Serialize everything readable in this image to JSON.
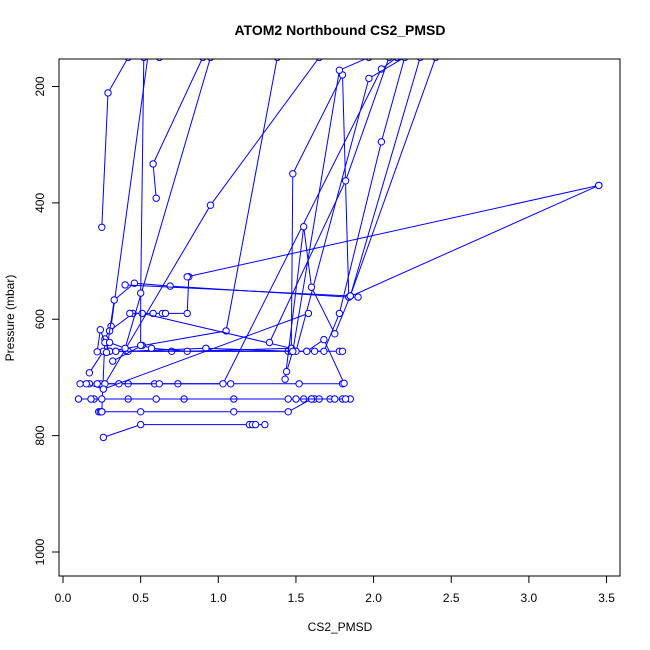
{
  "chart_data": {
    "type": "line",
    "title": "ATOM2 Northbound CS2_PMSD",
    "xlabel": "CS2_PMSD",
    "ylabel": "Pressure (mbar)",
    "xlim": [
      0,
      3.5
    ],
    "ylim": [
      1000,
      200
    ],
    "y_axis_reversed": true,
    "xticks": [
      0.0,
      0.5,
      1.0,
      1.5,
      2.0,
      2.5,
      3.0,
      3.5
    ],
    "xtick_labels": [
      "0.0",
      "0.5",
      "1.0",
      "1.5",
      "2.0",
      "2.5",
      "3.0",
      "3.5"
    ],
    "yticks": [
      200,
      400,
      600,
      800,
      1000
    ],
    "ytick_labels": [
      "200",
      "400",
      "600",
      "800",
      "1000"
    ],
    "grid": false,
    "legend": "none",
    "line_color": "#0000ff",
    "marker": "open-circle",
    "series": [
      {
        "x": [
          0.26,
          0.5,
          1.2,
          1.22,
          1.24,
          1.3
        ],
        "y": [
          803,
          781,
          781,
          781,
          781,
          781
        ]
      },
      {
        "x": [
          0.23,
          0.24,
          0.25,
          0.27,
          0.31,
          0.55
        ],
        "y": [
          759,
          759,
          759,
          634,
          612,
          142
        ]
      },
      {
        "x": [
          0.25,
          0.5,
          1.1,
          1.45,
          1.6,
          1.62,
          1.65
        ],
        "y": [
          759,
          759,
          759,
          759,
          737,
          737,
          737
        ]
      },
      {
        "x": [
          0.1,
          0.2,
          0.42,
          0.78,
          1.1,
          1.55,
          1.6,
          1.72,
          1.8,
          1.85
        ],
        "y": [
          737,
          737,
          737,
          737,
          737,
          737,
          737,
          737,
          737,
          737
        ]
      },
      {
        "x": [
          0.18,
          0.25,
          0.6,
          1.45,
          1.5,
          1.75,
          1.82
        ],
        "y": [
          737,
          737,
          737,
          737,
          737,
          737,
          737
        ]
      },
      {
        "x": [
          0.11,
          0.17,
          0.24,
          0.42,
          0.59,
          0.74,
          1.08,
          1.52,
          1.8
        ],
        "y": [
          711,
          711,
          711,
          711,
          711,
          711,
          711,
          711,
          711
        ]
      },
      {
        "x": [
          0.22,
          0.36,
          0.62,
          1.03,
          2.05,
          2.15
        ],
        "y": [
          711,
          711,
          711,
          711,
          170,
          150
        ]
      },
      {
        "x": [
          0.17,
          0.26,
          0.3,
          0.7,
          1.45,
          1.57,
          1.78,
          1.8
        ],
        "y": [
          692,
          655,
          655,
          655,
          655,
          655,
          655,
          655
        ]
      },
      {
        "x": [
          0.3,
          0.34,
          0.41,
          0.42,
          0.92,
          1.47,
          1.62,
          1.68,
          1.78,
          2.05,
          2.2
        ],
        "y": [
          655,
          655,
          655,
          655,
          650,
          655,
          655,
          655,
          590,
          295,
          150
        ]
      },
      {
        "x": [
          0.32,
          0.51,
          0.57,
          0.8,
          1.47
        ],
        "y": [
          672,
          645,
          650,
          655,
          650
        ]
      },
      {
        "x": [
          0.22,
          0.24,
          0.27,
          0.3,
          1.05,
          1.38
        ],
        "y": [
          656,
          618,
          640,
          655,
          620,
          150
        ]
      },
      {
        "x": [
          0.3,
          0.45,
          0.58,
          0.64,
          0.66,
          0.8,
          0.81
        ],
        "y": [
          620,
          590,
          590,
          590,
          590,
          590,
          527
        ]
      },
      {
        "x": [
          0.43,
          0.51,
          1.47,
          1.48,
          1.8,
          1.84,
          1.9
        ],
        "y": [
          590,
          590,
          650,
          350,
          180,
          562,
          562
        ]
      },
      {
        "x": [
          0.28,
          0.33,
          0.46,
          0.69,
          1.84,
          3.45
        ],
        "y": [
          657,
          567,
          538,
          543,
          562,
          370
        ]
      },
      {
        "x": [
          0.4,
          1.85,
          2.3
        ],
        "y": [
          541,
          560,
          150
        ]
      },
      {
        "x": [
          0.25,
          0.29,
          0.42,
          0.62
        ],
        "y": [
          442,
          211,
          150,
          150
        ]
      },
      {
        "x": [
          0.27,
          0.95,
          1.65
        ],
        "y": [
          711,
          404,
          150
        ]
      },
      {
        "x": [
          0.6,
          0.58,
          0.9
        ],
        "y": [
          392,
          333,
          150
        ]
      },
      {
        "x": [
          0.3,
          0.4,
          0.95
        ],
        "y": [
          640,
          650,
          150
        ]
      },
      {
        "x": [
          0.5,
          0.5,
          0.52
        ],
        "y": [
          645,
          555,
          150
        ]
      },
      {
        "x": [
          0.34,
          1.5,
          1.97,
          2.2
        ],
        "y": [
          655,
          655,
          186,
          150
        ]
      },
      {
        "x": [
          1.43,
          1.55,
          1.6,
          1.75,
          1.85,
          2.4
        ],
        "y": [
          703,
          441,
          545,
          625,
          560,
          150
        ]
      },
      {
        "x": [
          1.44,
          1.48,
          1.78,
          1.97
        ],
        "y": [
          690,
          655,
          172,
          150
        ]
      },
      {
        "x": [
          0.8,
          3.45
        ],
        "y": [
          527,
          370
        ]
      },
      {
        "x": [
          1.57,
          1.68,
          1.81
        ],
        "y": [
          655,
          635,
          710
        ]
      },
      {
        "x": [
          1.33,
          1.82,
          2.1
        ],
        "y": [
          640,
          362,
          150
        ]
      },
      {
        "x": [
          0.15,
          0.26,
          1.58
        ],
        "y": [
          711,
          720,
          590
        ]
      }
    ]
  }
}
